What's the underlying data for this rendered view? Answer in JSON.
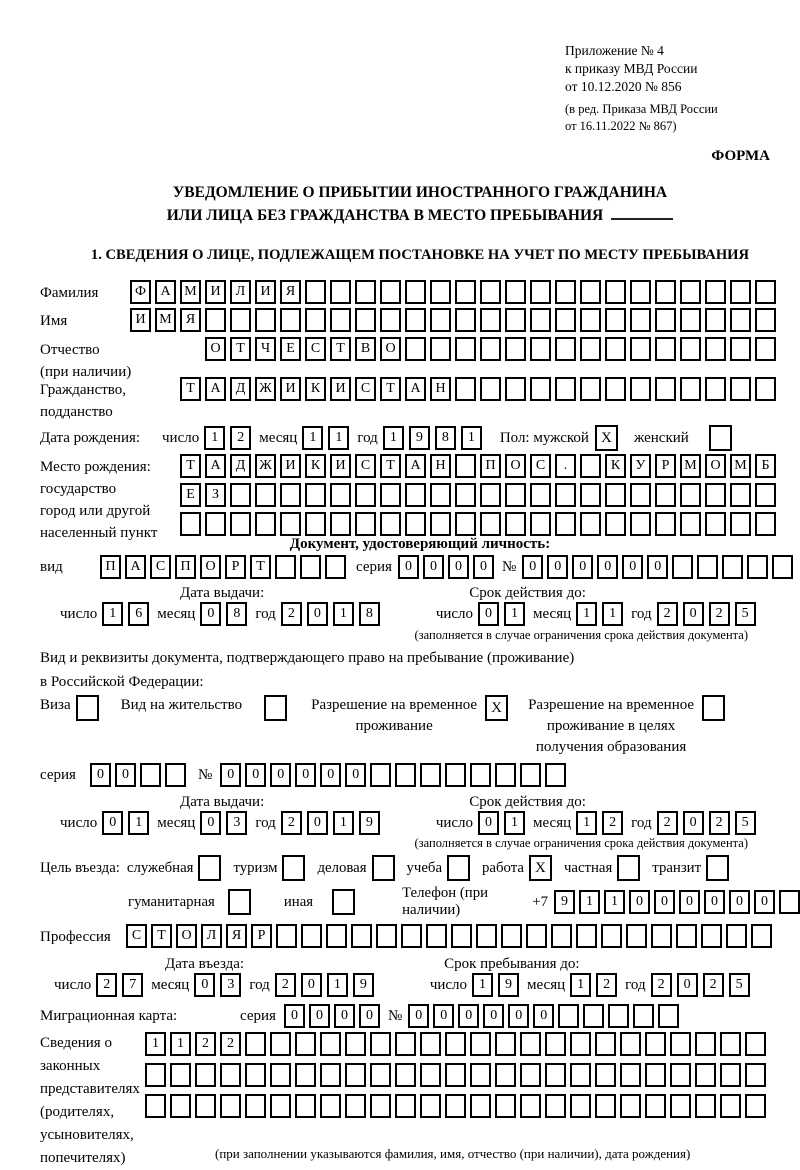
{
  "header": {
    "appendix": [
      "Приложение № 4",
      "к приказу МВД России",
      "от 10.12.2020 № 856"
    ],
    "amendment": [
      "(в ред. Приказа МВД России",
      "от 16.11.2022 № 867)"
    ],
    "form_label": "ФОРМА"
  },
  "title": {
    "line1": "УВЕДОМЛЕНИЕ О ПРИБЫТИИ ИНОСТРАННОГО ГРАЖДАНИНА",
    "line2": "ИЛИ ЛИЦА БЕЗ ГРАЖДАНСТВА В МЕСТО ПРЕБЫВАНИЯ"
  },
  "section1_heading": "1. СВЕДЕНИЯ О ЛИЦЕ, ПОДЛЕЖАЩЕМ ПОСТАНОВКЕ НА УЧЕТ ПО МЕСТУ ПРЕБЫВАНИЯ",
  "fields": {
    "surname": {
      "label": "Фамилия",
      "cells": {
        "v": "ФАМИЛИЯ",
        "n": 26
      }
    },
    "first_name": {
      "label": "Имя",
      "cells": {
        "v": "ИМЯ",
        "n": 26
      }
    },
    "patronymic": {
      "label1": "Отчество",
      "label2": "(при наличии)",
      "cells": {
        "v": "ОТЧЕСТВО",
        "n": 23
      }
    },
    "citizenship": {
      "label1": "Гражданство,",
      "label2": "подданство",
      "cells": {
        "v": "ТАДЖИКИСТАН",
        "n": 24
      }
    },
    "birth_date": {
      "label": "Дата рождения:",
      "day_label": "число",
      "day": {
        "v": "12",
        "n": 2
      },
      "month_label": "месяц",
      "month": {
        "v": "11",
        "n": 2
      },
      "year_label": "год",
      "year": {
        "v": "1981",
        "n": 4
      },
      "sex_label": "Пол: мужской",
      "male_mark": "X",
      "female_label": "женский",
      "female_mark": ""
    },
    "birth_place": {
      "label1": "Место рождения:",
      "label2": "государство",
      "label3": "город или другой",
      "label4": "населенный пункт",
      "row1": {
        "v": "ТАДЖИКИСТАН ПОС. КУРМОМБ",
        "n": 24
      },
      "row2": {
        "v": "ЕЗ",
        "n": 24
      },
      "row3": {
        "v": "",
        "n": 24
      }
    }
  },
  "identity_doc": {
    "heading": "Документ, удостоверяющий личность:",
    "kind_label": "вид",
    "kind": {
      "v": "ПАСПОРТ",
      "n": 10
    },
    "series_label": "серия",
    "series": {
      "v": "0000",
      "n": 4
    },
    "number_label": "№",
    "number": {
      "v": "000000",
      "n": 11
    },
    "issue_header": "Дата выдачи:",
    "issue": {
      "day_label": "число",
      "day": {
        "v": "16",
        "n": 2
      },
      "month_label": "месяц",
      "month": {
        "v": "08",
        "n": 2
      },
      "year_label": "год",
      "year": {
        "v": "2018",
        "n": 4
      }
    },
    "expiry_header": "Срок действия до:",
    "expiry": {
      "day_label": "число",
      "day": {
        "v": "01",
        "n": 2
      },
      "month_label": "месяц",
      "month": {
        "v": "11",
        "n": 2
      },
      "year_label": "год",
      "year": {
        "v": "2025",
        "n": 4
      }
    },
    "note": "(заполняется в случае ограничения срока действия документа)"
  },
  "residence_doc": {
    "intro1": "Вид и реквизиты документа, подтверждающего право на пребывание (проживание)",
    "intro2": "в Российской Федерации:",
    "options": [
      {
        "label1": "Виза",
        "mark": ""
      },
      {
        "label1": "Вид на жительство",
        "mark": ""
      },
      {
        "label1": "Разрешение на временное",
        "label2": "проживание",
        "mark": "X"
      },
      {
        "label1": "Разрешение на временное",
        "label2": "проживание в целях",
        "label3": "получения образования",
        "mark": ""
      }
    ],
    "series_label": "серия",
    "series": {
      "v": "00",
      "n": 4
    },
    "number_label": "№",
    "number": {
      "v": "000000",
      "n": 14
    },
    "issue_header": "Дата выдачи:",
    "issue": {
      "day_label": "число",
      "day": {
        "v": "01",
        "n": 2
      },
      "month_label": "месяц",
      "month": {
        "v": "03",
        "n": 2
      },
      "year_label": "год",
      "year": {
        "v": "2019",
        "n": 4
      }
    },
    "expiry_header": "Срок действия до:",
    "expiry": {
      "day_label": "число",
      "day": {
        "v": "01",
        "n": 2
      },
      "month_label": "месяц",
      "month": {
        "v": "12",
        "n": 2
      },
      "year_label": "год",
      "year": {
        "v": "2025",
        "n": 4
      }
    },
    "note": "(заполняется в случае ограничения срока действия документа)"
  },
  "visit": {
    "purpose_label": "Цель въезда:",
    "purposes_line1": [
      {
        "label": "служебная",
        "mark": ""
      },
      {
        "label": "туризм",
        "mark": ""
      },
      {
        "label": "деловая",
        "mark": ""
      },
      {
        "label": "учеба",
        "mark": ""
      },
      {
        "label": "работа",
        "mark": "X"
      },
      {
        "label": "частная",
        "mark": ""
      },
      {
        "label": "транзит",
        "mark": ""
      }
    ],
    "purposes_line2": [
      {
        "label": "гуманитарная",
        "mark": ""
      },
      {
        "label": "иная",
        "mark": ""
      }
    ],
    "phone_label": "Телефон (при наличии)",
    "phone_prefix": "+7",
    "phone": {
      "v": "911000000",
      "n": 10
    },
    "profession_label": "Профессия",
    "profession": {
      "v": "СТОЛЯР",
      "n": 26
    },
    "entry_header": "Дата въезда:",
    "entry": {
      "day_label": "число",
      "day": {
        "v": "27",
        "n": 2
      },
      "month_label": "месяц",
      "month": {
        "v": "03",
        "n": 2
      },
      "year_label": "год",
      "year": {
        "v": "2019",
        "n": 4
      }
    },
    "stay_header": "Срок пребывания до:",
    "stay": {
      "day_label": "число",
      "day": {
        "v": "19",
        "n": 2
      },
      "month_label": "месяц",
      "month": {
        "v": "12",
        "n": 2
      },
      "year_label": "год",
      "year": {
        "v": "2025",
        "n": 4
      }
    }
  },
  "migration_card": {
    "label": "Миграционная карта:",
    "series_label": "серия",
    "series": {
      "v": "0000",
      "n": 4
    },
    "number_label": "№",
    "number": {
      "v": "000000",
      "n": 11
    }
  },
  "representatives": {
    "label_lines": [
      "Сведения о",
      "законных",
      "представителях",
      "(родителях,",
      "усыновителях,",
      "попечителях)"
    ],
    "row1": {
      "v": "1122",
      "n": 25
    },
    "row2": {
      "v": "",
      "n": 25
    },
    "row3": {
      "v": "",
      "n": 25
    },
    "note": "(при заполнении указываются фамилия, имя, отчество (при наличии), дата рождения)"
  }
}
